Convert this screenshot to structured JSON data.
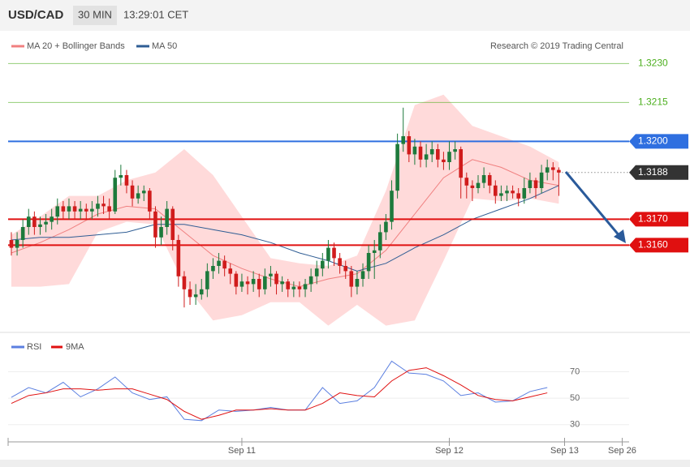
{
  "header": {
    "symbol": "USD/CAD",
    "timeframe": "30 MIN",
    "time": "13:29:01 CET"
  },
  "chart_data": [
    {
      "type": "candlestick",
      "credit": "Research © 2019 Trading Central",
      "up_color": "#1d7a3c",
      "down_color": "#d01c1c",
      "xlim": [
        -0.56,
        107.2
      ],
      "ylim": [
        1.3127,
        1.3242
      ],
      "candles": [
        [
          1.3162,
          1.3165,
          1.3156,
          1.3159
        ],
        [
          1.3159,
          1.3165,
          1.3156,
          1.3162
        ],
        [
          1.3162,
          1.317,
          1.3159,
          1.3167
        ],
        [
          1.3167,
          1.3174,
          1.3164,
          1.3171
        ],
        [
          1.3171,
          1.3173,
          1.3164,
          1.3167
        ],
        [
          1.3167,
          1.3171,
          1.3164,
          1.3168
        ],
        [
          1.3168,
          1.3172,
          1.3165,
          1.3169
        ],
        [
          1.3169,
          1.3174,
          1.3166,
          1.3171
        ],
        [
          1.3171,
          1.3178,
          1.3168,
          1.3175
        ],
        [
          1.3175,
          1.3177,
          1.317,
          1.3173
        ],
        [
          1.3173,
          1.3178,
          1.317,
          1.3175
        ],
        [
          1.3175,
          1.3177,
          1.317,
          1.3173
        ],
        [
          1.3173,
          1.3177,
          1.317,
          1.3174
        ],
        [
          1.3174,
          1.3176,
          1.317,
          1.3173
        ],
        [
          1.3173,
          1.3177,
          1.317,
          1.3174
        ],
        [
          1.3174,
          1.3179,
          1.3171,
          1.3176
        ],
        [
          1.3176,
          1.3179,
          1.3172,
          1.3175
        ],
        [
          1.3175,
          1.3178,
          1.317,
          1.3173
        ],
        [
          1.3173,
          1.3189,
          1.3172,
          1.3186
        ],
        [
          1.3186,
          1.3191,
          1.3183,
          1.3187
        ],
        [
          1.3187,
          1.3189,
          1.318,
          1.3183
        ],
        [
          1.3183,
          1.3185,
          1.3175,
          1.3178
        ],
        [
          1.3178,
          1.3183,
          1.3176,
          1.318
        ],
        [
          1.318,
          1.3183,
          1.3177,
          1.3181
        ],
        [
          1.3181,
          1.3182,
          1.317,
          1.3173
        ],
        [
          1.3173,
          1.3175,
          1.3159,
          1.3163
        ],
        [
          1.3163,
          1.3171,
          1.316,
          1.3167
        ],
        [
          1.3167,
          1.3177,
          1.3164,
          1.3174
        ],
        [
          1.3174,
          1.3175,
          1.3158,
          1.3162
        ],
        [
          1.3162,
          1.3164,
          1.3144,
          1.3148
        ],
        [
          1.3148,
          1.315,
          1.3136,
          1.3143
        ],
        [
          1.3143,
          1.3146,
          1.3137,
          1.314
        ],
        [
          1.314,
          1.3145,
          1.3137,
          1.3141
        ],
        [
          1.3141,
          1.3147,
          1.3139,
          1.3143
        ],
        [
          1.3143,
          1.3153,
          1.314,
          1.315
        ],
        [
          1.315,
          1.3155,
          1.3147,
          1.3152
        ],
        [
          1.3152,
          1.3157,
          1.3149,
          1.3154
        ],
        [
          1.3154,
          1.3156,
          1.3148,
          1.3151
        ],
        [
          1.3151,
          1.3153,
          1.3145,
          1.3149
        ],
        [
          1.3149,
          1.315,
          1.3141,
          1.3144
        ],
        [
          1.3144,
          1.3149,
          1.3142,
          1.3146
        ],
        [
          1.3146,
          1.3148,
          1.3141,
          1.3145
        ],
        [
          1.3145,
          1.315,
          1.3142,
          1.3147
        ],
        [
          1.3147,
          1.3149,
          1.314,
          1.3143
        ],
        [
          1.3143,
          1.3151,
          1.3141,
          1.3148
        ],
        [
          1.3148,
          1.3152,
          1.3144,
          1.3149
        ],
        [
          1.3149,
          1.315,
          1.3141,
          1.3145
        ],
        [
          1.3145,
          1.3148,
          1.3142,
          1.3146
        ],
        [
          1.3146,
          1.3147,
          1.314,
          1.3143
        ],
        [
          1.3143,
          1.3146,
          1.314,
          1.3144
        ],
        [
          1.3144,
          1.3146,
          1.314,
          1.3143
        ],
        [
          1.3143,
          1.3147,
          1.314,
          1.3145
        ],
        [
          1.3145,
          1.3151,
          1.3142,
          1.3148
        ],
        [
          1.3148,
          1.3154,
          1.3145,
          1.3151
        ],
        [
          1.3151,
          1.3157,
          1.3148,
          1.3154
        ],
        [
          1.3154,
          1.3162,
          1.3151,
          1.3159
        ],
        [
          1.3159,
          1.3161,
          1.3152,
          1.3155
        ],
        [
          1.3155,
          1.3157,
          1.3149,
          1.3152
        ],
        [
          1.3152,
          1.3154,
          1.3147,
          1.315
        ],
        [
          1.315,
          1.3152,
          1.314,
          1.3144
        ],
        [
          1.3144,
          1.315,
          1.3141,
          1.3147
        ],
        [
          1.3147,
          1.3153,
          1.3144,
          1.315
        ],
        [
          1.315,
          1.316,
          1.3147,
          1.3157
        ],
        [
          1.3157,
          1.3162,
          1.3147,
          1.3158
        ],
        [
          1.3158,
          1.3168,
          1.3155,
          1.3165
        ],
        [
          1.3165,
          1.3172,
          1.3162,
          1.3169
        ],
        [
          1.3169,
          1.3185,
          1.3166,
          1.3181
        ],
        [
          1.3181,
          1.3203,
          1.3178,
          1.3199
        ],
        [
          1.3199,
          1.3213,
          1.3196,
          1.3202
        ],
        [
          1.3202,
          1.3204,
          1.3192,
          1.3195
        ],
        [
          1.3195,
          1.3201,
          1.3191,
          1.3198
        ],
        [
          1.3198,
          1.32,
          1.319,
          1.3193
        ],
        [
          1.3193,
          1.3199,
          1.319,
          1.3195
        ],
        [
          1.3195,
          1.32,
          1.3192,
          1.3197
        ],
        [
          1.3197,
          1.3199,
          1.319,
          1.3193
        ],
        [
          1.3193,
          1.3196,
          1.3189,
          1.3192
        ],
        [
          1.3192,
          1.32,
          1.3189,
          1.3196
        ],
        [
          1.3196,
          1.32,
          1.3193,
          1.3197
        ],
        [
          1.3197,
          1.3198,
          1.3178,
          1.3186
        ],
        [
          1.3186,
          1.3188,
          1.3178,
          1.3183
        ],
        [
          1.3183,
          1.3185,
          1.3177,
          1.3182
        ],
        [
          1.3182,
          1.3187,
          1.318,
          1.3184
        ],
        [
          1.3184,
          1.319,
          1.3182,
          1.3187
        ],
        [
          1.3187,
          1.3188,
          1.318,
          1.3183
        ],
        [
          1.3183,
          1.3185,
          1.3176,
          1.3179
        ],
        [
          1.3179,
          1.3183,
          1.3177,
          1.318
        ],
        [
          1.318,
          1.3183,
          1.3177,
          1.3181
        ],
        [
          1.3181,
          1.3183,
          1.3178,
          1.318
        ],
        [
          1.318,
          1.3182,
          1.3175,
          1.3178
        ],
        [
          1.3178,
          1.3186,
          1.3176,
          1.3182
        ],
        [
          1.3182,
          1.3188,
          1.318,
          1.3185
        ],
        [
          1.3185,
          1.3186,
          1.3178,
          1.3182
        ],
        [
          1.3182,
          1.3191,
          1.318,
          1.3188
        ],
        [
          1.3188,
          1.3193,
          1.3185,
          1.319
        ],
        [
          1.319,
          1.3192,
          1.3185,
          1.3189
        ],
        [
          1.3189,
          1.319,
          1.3179,
          1.3188
        ]
      ],
      "bollinger": {
        "name": "MA 20 + Bollinger Bands",
        "color": "#f08080",
        "fill": "#ffdada",
        "x": [
          0,
          5,
          10,
          15,
          20,
          25,
          30,
          35,
          40,
          45,
          50,
          55,
          60,
          65,
          70,
          75,
          80,
          85,
          90,
          95
        ],
        "middle": [
          1.3157,
          1.3161,
          1.3166,
          1.3172,
          1.3175,
          1.3174,
          1.3165,
          1.3156,
          1.3151,
          1.3147,
          1.3144,
          1.3147,
          1.3149,
          1.3158,
          1.3172,
          1.3186,
          1.3193,
          1.319,
          1.3185,
          1.3183
        ],
        "upper": [
          1.3164,
          1.3171,
          1.3179,
          1.3179,
          1.3185,
          1.3188,
          1.3197,
          1.3187,
          1.3171,
          1.3155,
          1.3153,
          1.3152,
          1.3156,
          1.3181,
          1.3214,
          1.3218,
          1.3206,
          1.3202,
          1.3198,
          1.3192
        ],
        "lower": [
          1.3144,
          1.3144,
          1.3145,
          1.3165,
          1.3169,
          1.3168,
          1.3145,
          1.3131,
          1.3133,
          1.3138,
          1.3138,
          1.3129,
          1.3137,
          1.3129,
          1.3131,
          1.3154,
          1.3178,
          1.3177,
          1.3178,
          1.3176
        ]
      },
      "ma50": {
        "name": "MA 50",
        "color": "#2f5d94",
        "x": [
          0,
          5,
          10,
          15,
          20,
          25,
          30,
          35,
          40,
          45,
          50,
          55,
          60,
          65,
          70,
          75,
          80,
          85,
          90,
          95
        ],
        "values": [
          1.3162,
          1.3163,
          1.3163,
          1.3164,
          1.3165,
          1.3168,
          1.3168,
          1.3166,
          1.3164,
          1.3161,
          1.3157,
          1.3154,
          1.315,
          1.3153,
          1.3159,
          1.3164,
          1.317,
          1.3174,
          1.3178,
          1.3183
        ]
      },
      "levels": [
        {
          "value": 1.323,
          "label": "1.3230",
          "color": "#4caf1e",
          "kind": "text",
          "line": "solid"
        },
        {
          "value": 1.3215,
          "label": "1.3215",
          "color": "#4caf1e",
          "kind": "text",
          "line": "solid"
        },
        {
          "value": 1.32,
          "label": "1.3200",
          "color": "#2f6fe0",
          "kind": "box",
          "line": "solid"
        },
        {
          "value": 1.3188,
          "label": "1.3188",
          "color": "#333333",
          "kind": "box",
          "line": "dotted"
        },
        {
          "value": 1.317,
          "label": "1.3170",
          "color": "#e01010",
          "kind": "box",
          "line": "solid"
        },
        {
          "value": 1.316,
          "label": "1.3160",
          "color": "#e01010",
          "kind": "box",
          "line": "solid"
        }
      ]
    },
    {
      "type": "line",
      "xlim": [
        -0.56,
        107.2
      ],
      "ylim": [
        20,
        98.5
      ],
      "yticks": [
        30,
        50,
        70
      ],
      "xticks": [
        {
          "value": 40,
          "label": "Sep 11"
        },
        {
          "value": 76,
          "label": "Sep 12"
        },
        {
          "value": 96,
          "label": "Sep 13"
        },
        {
          "value": 106,
          "label": "Sep 26"
        }
      ],
      "x": [
        0,
        3,
        6,
        9,
        12,
        15,
        18,
        21,
        24,
        27,
        30,
        33,
        36,
        39,
        42,
        45,
        48,
        51,
        54,
        57,
        60,
        63,
        66,
        69,
        72,
        75,
        78,
        81,
        84,
        87,
        90,
        93
      ],
      "series": [
        {
          "name": "RSI",
          "color": "#5b7fe0",
          "values": [
            50.6,
            58,
            54,
            62,
            51,
            57,
            66,
            54,
            49,
            51,
            34,
            33,
            41,
            40,
            41,
            43,
            41,
            41,
            58,
            46,
            48,
            58,
            78,
            69,
            68,
            63,
            52,
            54,
            47,
            48,
            55,
            58
          ]
        },
        {
          "name": "9MA",
          "color": "#e01010",
          "values": [
            46,
            52,
            54,
            57,
            57,
            56,
            57,
            57,
            53,
            49,
            40,
            34,
            37,
            41,
            41,
            42,
            41,
            41,
            46,
            54,
            52,
            51,
            63,
            71,
            73,
            67,
            60,
            52,
            49,
            48,
            51,
            54
          ]
        }
      ]
    }
  ]
}
